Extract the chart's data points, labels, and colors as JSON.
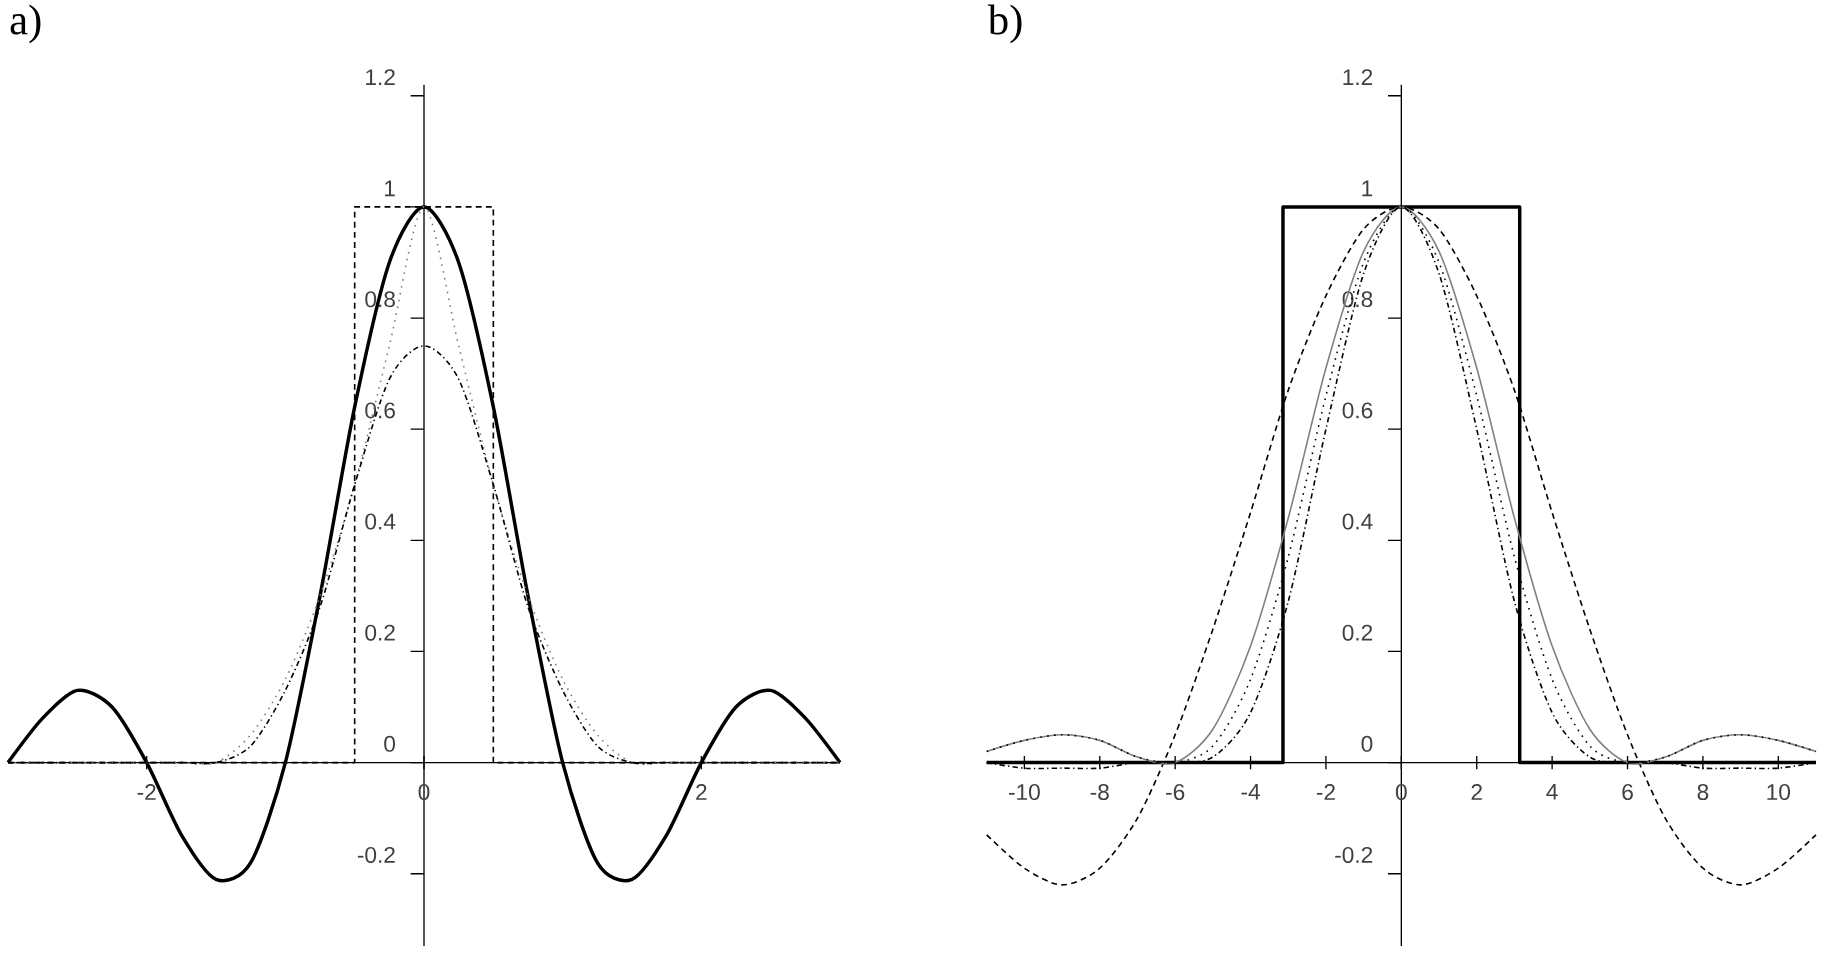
{
  "chart_data": [
    {
      "type": "line",
      "title": "a)",
      "xlim": [
        -3,
        3
      ],
      "ylim": [
        -0.33,
        1.22
      ],
      "xticks": [
        -2,
        0,
        2
      ],
      "yticks": [
        -0.2,
        0,
        0.2,
        0.4,
        0.6,
        0.8,
        1,
        1.2
      ],
      "grid": false,
      "series": [
        {
          "color": "#000000",
          "line_style": "dashed",
          "x": [
            -3,
            -0.5,
            -0.5,
            0.5,
            0.5,
            3
          ],
          "values": [
            0,
            0,
            1,
            1,
            0,
            0
          ]
        },
        {
          "color": "#000000",
          "line_style": "solid",
          "x": [
            -3,
            -2.75,
            -2.5,
            -2.25,
            -2,
            -1.75,
            -1.5,
            -1.25,
            -1,
            -0.75,
            -0.5,
            -0.25,
            0,
            0.25,
            0.5,
            0.75,
            1,
            1.25,
            1.5,
            1.75,
            2,
            2.25,
            2.5,
            2.75,
            3
          ],
          "values": [
            0,
            0.08,
            0.13,
            0.1,
            0,
            -0.13,
            -0.21,
            -0.18,
            0,
            0.3,
            0.64,
            0.9,
            1,
            0.9,
            0.64,
            0.3,
            0,
            -0.18,
            -0.21,
            -0.13,
            0,
            0.1,
            0.13,
            0.08,
            0
          ]
        },
        {
          "color": "#808080",
          "line_style": "dotted",
          "x": [
            -3,
            -2.75,
            -2.5,
            -2.25,
            -2,
            -1.75,
            -1.5,
            -1.25,
            -1,
            -0.75,
            -0.5,
            -0.25,
            0,
            0.25,
            0.5,
            0.75,
            1,
            1.25,
            1.5,
            1.75,
            2,
            2.25,
            2.5,
            2.75,
            3
          ],
          "values": [
            0,
            0,
            0,
            0,
            0,
            0,
            0,
            0.05,
            0.15,
            0.3,
            0.5,
            0.75,
            1,
            0.75,
            0.5,
            0.3,
            0.15,
            0.05,
            0,
            0,
            0,
            0,
            0,
            0,
            0
          ]
        },
        {
          "color": "#000000",
          "line_style": "dashdot",
          "x": [
            -3,
            -2.75,
            -2.5,
            -2.25,
            -2,
            -1.75,
            -1.5,
            -1.25,
            -1,
            -0.75,
            -0.5,
            -0.25,
            0,
            0.25,
            0.5,
            0.75,
            1,
            1.25,
            1.5,
            1.75,
            2,
            2.25,
            2.5,
            2.75,
            3
          ],
          "values": [
            0,
            0,
            0,
            0,
            0,
            0,
            0,
            0.03,
            0.13,
            0.28,
            0.5,
            0.69,
            0.75,
            0.69,
            0.5,
            0.28,
            0.13,
            0.03,
            0,
            0,
            0,
            0,
            0,
            0,
            0
          ]
        }
      ]
    },
    {
      "type": "line",
      "title": "b)",
      "xlim": [
        -11,
        11
      ],
      "ylim": [
        -0.33,
        1.22
      ],
      "xticks": [
        -10,
        -8,
        -6,
        -4,
        -2,
        0,
        2,
        4,
        6,
        8,
        10
      ],
      "yticks": [
        -0.2,
        0,
        0.2,
        0.4,
        0.6,
        0.8,
        1,
        1.2
      ],
      "grid": false,
      "series": [
        {
          "color": "#000000",
          "line_style": "solid",
          "x": [
            -11,
            -3.14,
            -3.14,
            3.14,
            3.14,
            11
          ],
          "values": [
            0,
            0,
            1,
            1,
            0,
            0
          ]
        },
        {
          "color": "#000000",
          "line_style": "dashed",
          "x": [
            -11,
            -10,
            -9,
            -8,
            -7,
            -6,
            -5,
            -4,
            -3,
            -2,
            -1,
            0,
            1,
            2,
            3,
            4,
            5,
            6,
            7,
            8,
            9,
            10,
            11
          ],
          "values": [
            -0.13,
            -0.19,
            -0.22,
            -0.19,
            -0.1,
            0.05,
            0.24,
            0.45,
            0.67,
            0.84,
            0.96,
            1,
            0.96,
            0.84,
            0.67,
            0.45,
            0.24,
            0.05,
            -0.1,
            -0.19,
            -0.22,
            -0.19,
            -0.13
          ]
        },
        {
          "color": "#808080",
          "line_style": "solid",
          "x": [
            -11,
            -10,
            -9,
            -8,
            -7,
            -6,
            -5,
            -4,
            -3,
            -2,
            -1,
            0,
            1,
            2,
            3,
            4,
            5,
            6,
            7,
            8,
            9,
            10,
            11
          ],
          "values": [
            0.02,
            0.04,
            0.05,
            0.04,
            0.01,
            0,
            0.06,
            0.21,
            0.44,
            0.71,
            0.92,
            1,
            0.92,
            0.71,
            0.44,
            0.21,
            0.06,
            0,
            0.01,
            0.04,
            0.05,
            0.04,
            0.02
          ]
        },
        {
          "color": "#000000",
          "line_style": "dotted",
          "x": [
            -11,
            -10,
            -9,
            -8,
            -7,
            -6,
            -5,
            -4,
            -3,
            -2,
            -1,
            0,
            1,
            2,
            3,
            4,
            5,
            6,
            7,
            8,
            9,
            10,
            11
          ],
          "values": [
            0.02,
            0.04,
            0.05,
            0.04,
            0.01,
            0,
            0.03,
            0.15,
            0.37,
            0.66,
            0.9,
            1,
            0.9,
            0.66,
            0.37,
            0.15,
            0.03,
            0,
            0.01,
            0.04,
            0.05,
            0.04,
            0.02
          ]
        },
        {
          "color": "#000000",
          "line_style": "dashdot",
          "x": [
            -11,
            -10,
            -9,
            -8,
            -7,
            -6,
            -5,
            -4,
            -3,
            -2,
            -1,
            0,
            1,
            2,
            3,
            4,
            5,
            6,
            7,
            8,
            9,
            10,
            11
          ],
          "values": [
            0,
            -0.01,
            -0.01,
            -0.01,
            0,
            0,
            0.01,
            0.09,
            0.29,
            0.6,
            0.88,
            1,
            0.88,
            0.6,
            0.29,
            0.09,
            0.01,
            0,
            0,
            -0.01,
            -0.01,
            -0.01,
            0
          ]
        }
      ]
    }
  ]
}
